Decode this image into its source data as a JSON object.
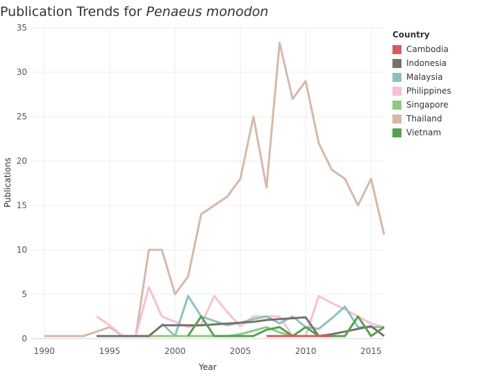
{
  "chart_data": {
    "type": "line",
    "title_prefix": "Publication Trends for ",
    "title_species": "Penaeus monodon",
    "xlabel": "Year",
    "ylabel": "Publications",
    "xlim": [
      1989,
      2016
    ],
    "ylim": [
      0,
      35
    ],
    "x_ticks": [
      1990,
      1995,
      2000,
      2005,
      2010,
      2015
    ],
    "y_ticks": [
      0,
      5,
      10,
      15,
      20,
      25,
      30,
      35
    ],
    "grid": true,
    "legend_title": "Country",
    "legend_position": "top-right",
    "series": [
      {
        "name": "Cambodia",
        "color": "#dc5a5a",
        "points": [
          [
            2007,
            0.3
          ],
          [
            2008,
            0.3
          ],
          [
            2009,
            0.3
          ],
          [
            2010,
            0.3
          ],
          [
            2011,
            0.3
          ],
          [
            2012,
            0.3
          ]
        ]
      },
      {
        "name": "Indonesia",
        "color": "#78706b",
        "points": [
          [
            1994,
            0.3
          ],
          [
            1995,
            0.3
          ],
          [
            1996,
            0.3
          ],
          [
            1997,
            0.3
          ],
          [
            1998,
            0.3
          ],
          [
            1999,
            1.5
          ],
          [
            2000,
            1.5
          ],
          [
            2001,
            1.5
          ],
          [
            2002,
            1.5
          ],
          [
            2003,
            1.6
          ],
          [
            2004,
            1.7
          ],
          [
            2005,
            1.8
          ],
          [
            2006,
            1.9
          ],
          [
            2007,
            2.1
          ],
          [
            2008,
            2.2
          ],
          [
            2009,
            2.3
          ],
          [
            2010,
            2.4
          ],
          [
            2011,
            0.3
          ],
          [
            2012,
            0.5
          ],
          [
            2013,
            0.8
          ],
          [
            2014,
            1.1
          ],
          [
            2015,
            1.4
          ],
          [
            2016,
            0.3
          ]
        ]
      },
      {
        "name": "Malaysia",
        "color": "#8cc2bc",
        "points": [
          [
            1999,
            1.7
          ],
          [
            2000,
            0.3
          ],
          [
            2001,
            4.8
          ],
          [
            2002,
            2.5
          ],
          [
            2003,
            2.0
          ],
          [
            2004,
            1.5
          ],
          [
            2005,
            1.8
          ],
          [
            2006,
            2.2
          ],
          [
            2007,
            2.5
          ],
          [
            2008,
            1.7
          ],
          [
            2009,
            2.5
          ],
          [
            2010,
            1.3
          ],
          [
            2011,
            1.1
          ],
          [
            2012,
            2.3
          ],
          [
            2013,
            3.6
          ],
          [
            2014,
            1.3
          ],
          [
            2015,
            1.3
          ],
          [
            2016,
            1.3
          ]
        ]
      },
      {
        "name": "Philippines",
        "color": "#f7bfd5",
        "points": [
          [
            1994,
            2.5
          ],
          [
            1995,
            1.5
          ],
          [
            1996,
            0.3
          ],
          [
            1997,
            0.3
          ],
          [
            1998,
            5.8
          ],
          [
            1999,
            2.5
          ],
          [
            2000,
            1.9
          ],
          [
            2001,
            1.3
          ],
          [
            2002,
            1.6
          ],
          [
            2003,
            4.8
          ],
          [
            2004,
            3.0
          ],
          [
            2005,
            1.4
          ],
          [
            2006,
            2.5
          ],
          [
            2007,
            2.5
          ],
          [
            2008,
            2.5
          ],
          [
            2009,
            0.3
          ],
          [
            2010,
            0.3
          ],
          [
            2011,
            4.8
          ],
          [
            2012,
            4.0
          ],
          [
            2013,
            3.3
          ],
          [
            2014,
            2.5
          ],
          [
            2015,
            1.7
          ],
          [
            2016,
            1.3
          ]
        ]
      },
      {
        "name": "Singapore",
        "color": "#8ccb7f",
        "points": [
          [
            1997,
            0.3
          ],
          [
            1998,
            0.3
          ],
          [
            1999,
            0.3
          ],
          [
            2000,
            0.3
          ],
          [
            2001,
            0.3
          ],
          [
            2002,
            0.3
          ],
          [
            2003,
            0.3
          ],
          [
            2004,
            0.3
          ],
          [
            2005,
            0.5
          ],
          [
            2006,
            0.9
          ],
          [
            2007,
            1.3
          ],
          [
            2008,
            0.7
          ],
          [
            2009,
            0.3
          ]
        ]
      },
      {
        "name": "Thailand",
        "color": "#d6b8a8",
        "points": [
          [
            1990,
            0.3
          ],
          [
            1991,
            0.3
          ],
          [
            1992,
            0.3
          ],
          [
            1993,
            0.3
          ],
          [
            1994,
            0.8
          ],
          [
            1995,
            1.3
          ],
          [
            1996,
            0.3
          ],
          [
            1997,
            0.3
          ],
          [
            1998,
            10
          ],
          [
            1999,
            10
          ],
          [
            2000,
            5
          ],
          [
            2001,
            7
          ],
          [
            2002,
            14
          ],
          [
            2003,
            15
          ],
          [
            2004,
            16
          ],
          [
            2005,
            18
          ],
          [
            2006,
            25
          ],
          [
            2007,
            17
          ],
          [
            2008,
            33.3
          ],
          [
            2009,
            27
          ],
          [
            2010,
            29
          ],
          [
            2011,
            22
          ],
          [
            2012,
            19
          ],
          [
            2013,
            18
          ],
          [
            2014,
            15
          ],
          [
            2015,
            18
          ],
          [
            2016,
            11.7
          ]
        ]
      },
      {
        "name": "Vietnam",
        "color": "#55a04f",
        "points": [
          [
            2001,
            0.3
          ],
          [
            2002,
            2.5
          ],
          [
            2003,
            0.3
          ],
          [
            2004,
            0.3
          ],
          [
            2005,
            0.3
          ],
          [
            2006,
            0.3
          ],
          [
            2007,
            1.0
          ],
          [
            2008,
            1.3
          ],
          [
            2009,
            0.3
          ],
          [
            2010,
            1.3
          ],
          [
            2011,
            0.3
          ],
          [
            2012,
            0.3
          ],
          [
            2013,
            0.3
          ],
          [
            2014,
            2.5
          ],
          [
            2015,
            0.3
          ],
          [
            2016,
            1.3
          ]
        ]
      }
    ]
  }
}
